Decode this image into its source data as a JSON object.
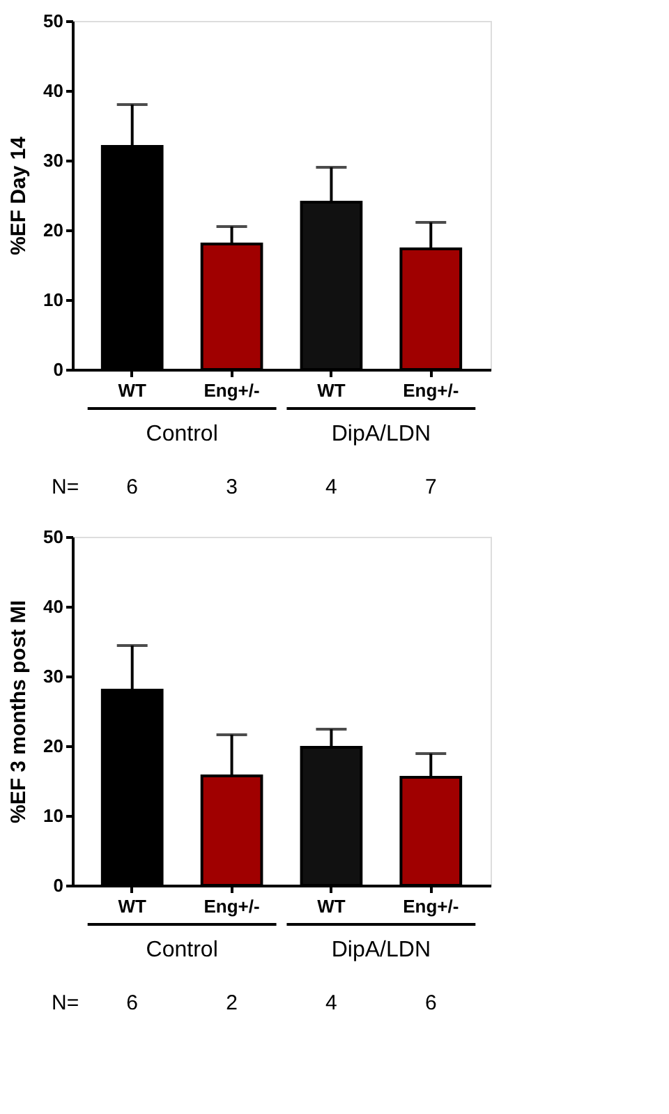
{
  "chart_data": [
    {
      "type": "bar",
      "ylabel": "%EF Day 14",
      "categories": [
        "WT",
        "Eng+/-",
        "WT",
        "Eng+/-"
      ],
      "values": [
        32,
        18,
        24,
        17.3
      ],
      "colors": [
        "#000000",
        "#a00000",
        "#111111",
        "#a00000"
      ],
      "errors": [
        [
          32,
          38
        ],
        [
          18,
          20.5
        ],
        [
          24,
          29
        ],
        [
          17.3,
          21.1
        ]
      ],
      "ylim": [
        0,
        50
      ],
      "yticks": [
        0,
        10,
        20,
        30,
        40,
        50
      ],
      "annotations": [
        "Control",
        "DipA/LDN",
        "N=",
        "6",
        "3",
        "4",
        "7"
      ]
    },
    {
      "type": "bar",
      "ylabel": "%EF 3 months post MI",
      "categories": [
        "WT",
        "Eng+/-",
        "WT",
        "Eng+/-"
      ],
      "values": [
        28,
        15.7,
        19.8,
        15.5
      ],
      "colors": [
        "#000000",
        "#a00000",
        "#111111",
        "#a00000"
      ],
      "errors": [
        [
          28,
          34.4
        ],
        [
          15.7,
          21.6
        ],
        [
          19.8,
          22.4
        ],
        [
          15.5,
          18.9
        ]
      ],
      "ylim": [
        0,
        50
      ],
      "yticks": [
        0,
        10,
        20,
        30,
        40,
        50
      ],
      "annotations": [
        "Control",
        "DipA/LDN",
        "N=",
        "6",
        "2",
        "4",
        "6"
      ]
    }
  ]
}
